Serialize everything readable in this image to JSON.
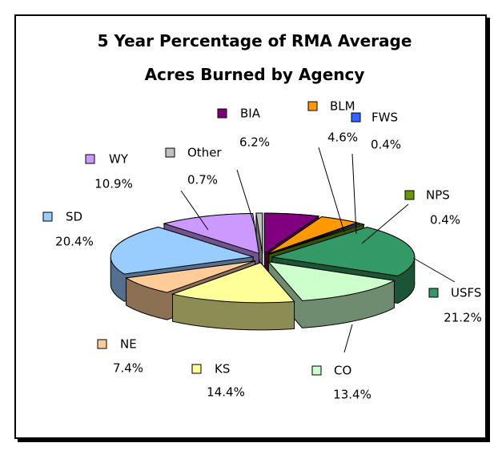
{
  "chart_data": {
    "type": "pie",
    "title": "5 Year Percentage of RMA Average Acres Burned by Agency",
    "categories": [
      "BIA",
      "BLM",
      "FWS",
      "NPS",
      "USFS",
      "CO",
      "KS",
      "NE",
      "SD",
      "WY",
      "Other"
    ],
    "values": [
      6.2,
      4.6,
      0.4,
      0.4,
      21.2,
      13.4,
      14.4,
      7.4,
      20.4,
      10.9,
      0.7
    ],
    "value_labels": [
      "6.2%",
      "4.6%",
      "0.4%",
      "0.4%",
      "21.2%",
      "13.4%",
      "14.4%",
      "7.4%",
      "20.4%",
      "10.9%",
      "0.7%"
    ],
    "colors": [
      "#800080",
      "#ff9900",
      "#3366ff",
      "#669900",
      "#339966",
      "#ccffcc",
      "#ffff99",
      "#ffcc99",
      "#99ccff",
      "#cc99ff",
      "#c0c0c0"
    ]
  }
}
